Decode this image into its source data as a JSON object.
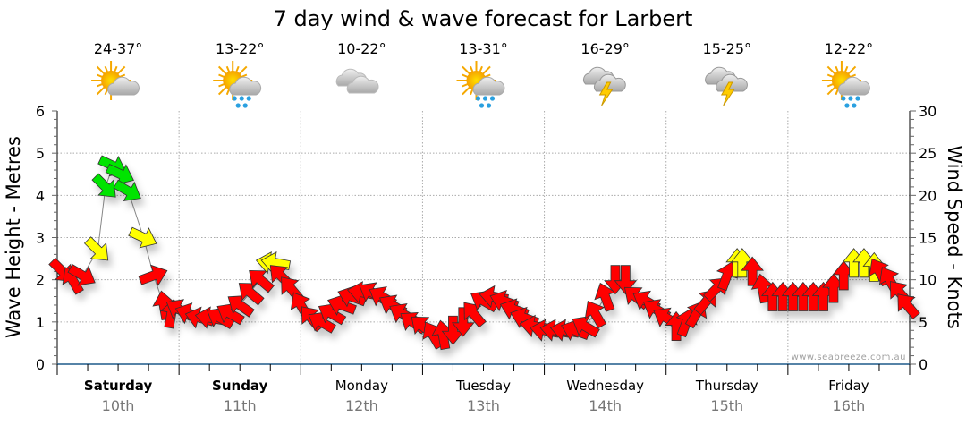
{
  "chart_data": {
    "type": "scatter",
    "title": "7 day wind & wave forecast for Larbert",
    "ylabel_left": "Wave Height - Metres",
    "ylabel_right": "Wind Speed - Knots",
    "ylim_left": [
      0,
      6
    ],
    "ylim_right": [
      0,
      30
    ],
    "left_ticks": [
      "0",
      "1",
      "2",
      "3",
      "4",
      "5",
      "6"
    ],
    "right_ticks": [
      "0",
      "5",
      "10",
      "15",
      "20",
      "25",
      "30"
    ],
    "grid": true,
    "watermark": "www.seabreeze.com.au",
    "x_hours_range": [
      0,
      168
    ],
    "colors": {
      "red": "#ff0000",
      "yellow": "#ffff00",
      "green": "#00e400"
    },
    "days": [
      {
        "name": "Saturday",
        "date": "10th",
        "temp": "24-37°",
        "icon": "sun-cloud-icon",
        "bold": true
      },
      {
        "name": "Sunday",
        "date": "11th",
        "temp": "13-22°",
        "icon": "sun-cloud-rain-icon",
        "bold": true
      },
      {
        "name": "Monday",
        "date": "12th",
        "temp": "10-22°",
        "icon": "cloud-icon",
        "bold": false
      },
      {
        "name": "Tuesday",
        "date": "13th",
        "temp": "13-31°",
        "icon": "sun-cloud-rain-icon",
        "bold": false
      },
      {
        "name": "Wednesday",
        "date": "14th",
        "temp": "16-29°",
        "icon": "storm-icon",
        "bold": false
      },
      {
        "name": "Thursday",
        "date": "15th",
        "temp": "15-25°",
        "icon": "storm-icon",
        "bold": false
      },
      {
        "name": "Friday",
        "date": "16th",
        "temp": "12-22°",
        "icon": "sun-cloud-rain-icon",
        "bold": false
      }
    ],
    "wind_series_fields": [
      "hour",
      "knots",
      "arrow_angle_deg",
      "color"
    ],
    "wind": [
      [
        1,
        11,
        45,
        "red"
      ],
      [
        3,
        10,
        -120,
        "red"
      ],
      [
        5,
        10.5,
        30,
        "red"
      ],
      [
        8,
        13.5,
        45,
        "yellow"
      ],
      [
        9.5,
        21,
        45,
        "green"
      ],
      [
        11,
        23.5,
        25,
        "green"
      ],
      [
        12.5,
        22.5,
        25,
        "green"
      ],
      [
        14,
        20.5,
        30,
        "green"
      ],
      [
        17,
        15,
        25,
        "yellow"
      ],
      [
        19,
        10.5,
        -20,
        "red"
      ],
      [
        21,
        7,
        -100,
        "red"
      ],
      [
        22.5,
        6,
        -80,
        "red"
      ],
      [
        24,
        6.5,
        -150,
        "red"
      ],
      [
        26,
        6,
        -160,
        "red"
      ],
      [
        28,
        5.5,
        -165,
        "red"
      ],
      [
        30,
        5.5,
        -170,
        "red"
      ],
      [
        32,
        5.5,
        -150,
        "red"
      ],
      [
        34,
        6,
        -150,
        "red"
      ],
      [
        36,
        7,
        -145,
        "red"
      ],
      [
        38,
        8.5,
        -140,
        "red"
      ],
      [
        40,
        10,
        -140,
        "red"
      ],
      [
        42,
        12,
        -170,
        "yellow"
      ],
      [
        43,
        12,
        -170,
        "yellow"
      ],
      [
        44,
        10.5,
        -135,
        "red"
      ],
      [
        46,
        9,
        -130,
        "red"
      ],
      [
        48,
        7,
        -120,
        "red"
      ],
      [
        50,
        5.5,
        -130,
        "red"
      ],
      [
        52,
        5,
        -150,
        "red"
      ],
      [
        54,
        6,
        -150,
        "red"
      ],
      [
        56,
        7,
        -160,
        "red"
      ],
      [
        58,
        8,
        -160,
        "red"
      ],
      [
        60,
        8.5,
        -170,
        "red"
      ],
      [
        62,
        8.5,
        -150,
        "red"
      ],
      [
        64,
        8,
        -150,
        "red"
      ],
      [
        66,
        7,
        -150,
        "red"
      ],
      [
        68,
        6,
        -150,
        "red"
      ],
      [
        70,
        5,
        -145,
        "red"
      ],
      [
        72,
        4.5,
        -140,
        "red"
      ],
      [
        74,
        3.5,
        -120,
        "red"
      ],
      [
        76,
        3.5,
        -100,
        "red"
      ],
      [
        78,
        4,
        90,
        "red"
      ],
      [
        80,
        5,
        90,
        "red"
      ],
      [
        82,
        6,
        -130,
        "red"
      ],
      [
        84,
        7.5,
        -150,
        "red"
      ],
      [
        86,
        8,
        -170,
        "red"
      ],
      [
        88,
        7.5,
        -160,
        "red"
      ],
      [
        90,
        6.5,
        -160,
        "red"
      ],
      [
        92,
        5.5,
        -160,
        "red"
      ],
      [
        94,
        4.5,
        -170,
        "red"
      ],
      [
        96,
        4,
        -170,
        "red"
      ],
      [
        98,
        4,
        -170,
        "red"
      ],
      [
        100,
        4,
        -170,
        "red"
      ],
      [
        102,
        4,
        -160,
        "red"
      ],
      [
        104,
        4.5,
        -150,
        "red"
      ],
      [
        106,
        6,
        -120,
        "red"
      ],
      [
        108,
        8,
        -110,
        "red"
      ],
      [
        110,
        10,
        90,
        "red"
      ],
      [
        112,
        10,
        90,
        "red"
      ],
      [
        114,
        8,
        -140,
        "red"
      ],
      [
        116,
        7.5,
        -150,
        "red"
      ],
      [
        118,
        6.5,
        -150,
        "red"
      ],
      [
        120,
        5.5,
        -150,
        "red"
      ],
      [
        122,
        4.5,
        -90,
        "red"
      ],
      [
        124,
        5,
        -70,
        "red"
      ],
      [
        126,
        6,
        -60,
        "red"
      ],
      [
        128,
        7.5,
        -50,
        "red"
      ],
      [
        130,
        9,
        -45,
        "red"
      ],
      [
        132,
        10.5,
        -70,
        "red"
      ],
      [
        134,
        12,
        -90,
        "yellow"
      ],
      [
        135,
        12,
        -90,
        "yellow"
      ],
      [
        137,
        11,
        -90,
        "red"
      ],
      [
        139,
        9,
        -100,
        "red"
      ],
      [
        141,
        8,
        -90,
        "red"
      ],
      [
        143,
        8,
        -90,
        "red"
      ],
      [
        145,
        8,
        -90,
        "red"
      ],
      [
        147,
        8,
        -90,
        "red"
      ],
      [
        149,
        8,
        -90,
        "red"
      ],
      [
        151,
        8,
        -90,
        "red"
      ],
      [
        153,
        9,
        -90,
        "red"
      ],
      [
        155,
        10.5,
        -90,
        "red"
      ],
      [
        157,
        12,
        -90,
        "yellow"
      ],
      [
        159,
        12,
        -90,
        "yellow"
      ],
      [
        161,
        11.5,
        -90,
        "yellow"
      ],
      [
        162,
        11,
        -120,
        "red"
      ],
      [
        164,
        10,
        -120,
        "red"
      ],
      [
        166,
        8.5,
        -130,
        "red"
      ],
      [
        167.5,
        7,
        -130,
        "red"
      ]
    ]
  }
}
